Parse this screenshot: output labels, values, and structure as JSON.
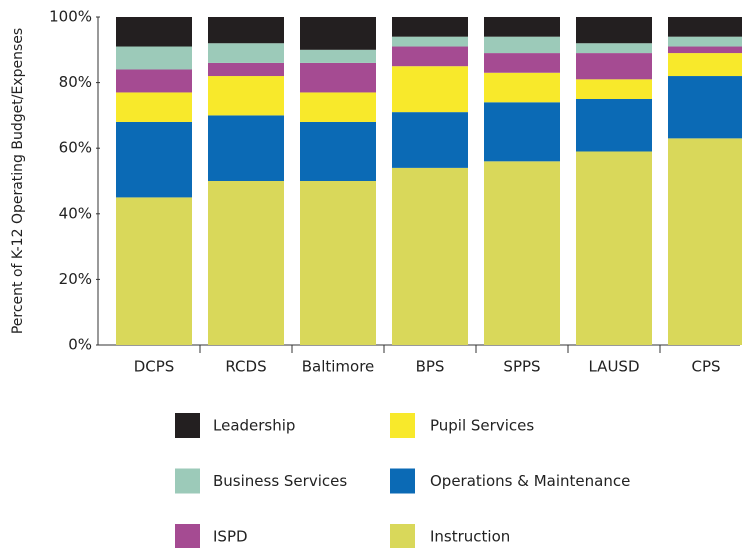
{
  "chart_data": {
    "type": "stacked_bar",
    "y_label": "Percent of K-12 Operating Budget/Expenses",
    "categories": [
      "DCPS",
      "RCDS",
      "Baltimore",
      "BPS",
      "SPPS",
      "LAUSD",
      "CPS"
    ],
    "series": [
      {
        "name": "Instruction",
        "color": "#d9d85a",
        "values": [
          45,
          50,
          50,
          54,
          56,
          59,
          63
        ]
      },
      {
        "name": "Operations & Maintenance",
        "color": "#0b6ab5",
        "values": [
          23,
          20,
          18,
          17,
          18,
          16,
          19
        ]
      },
      {
        "name": "Pupil Services",
        "color": "#f8e92b",
        "values": [
          9,
          12,
          9,
          14,
          9,
          6,
          7
        ]
      },
      {
        "name": "ISPD",
        "color": "#a54b92",
        "values": [
          7,
          4,
          9,
          6,
          6,
          8,
          2
        ]
      },
      {
        "name": "Business Services",
        "color": "#9ccab9",
        "values": [
          7,
          6,
          4,
          3,
          5,
          3,
          3
        ]
      },
      {
        "name": "Leadership",
        "color": "#231f20",
        "values": [
          9,
          8,
          10,
          6,
          6,
          8,
          6
        ]
      }
    ],
    "ylim": [
      0,
      100
    ],
    "yticks": [
      {
        "value": 0,
        "label": "0%"
      },
      {
        "value": 20,
        "label": "20%"
      },
      {
        "value": 40,
        "label": "40%"
      },
      {
        "value": 60,
        "label": "60%"
      },
      {
        "value": 80,
        "label": "80%"
      },
      {
        "value": 100,
        "label": "100%"
      }
    ]
  }
}
